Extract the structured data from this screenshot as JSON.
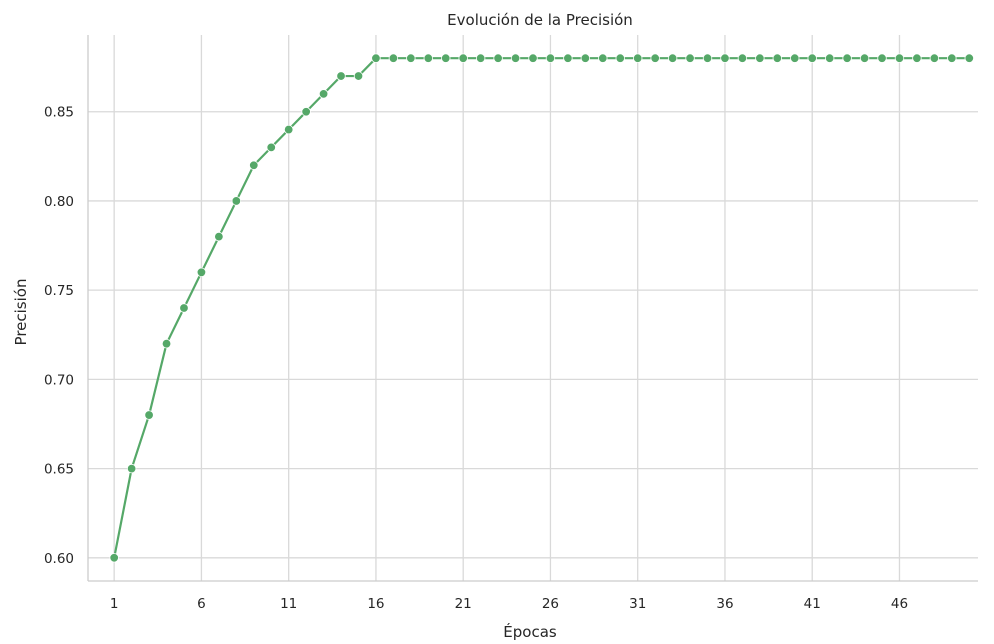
{
  "chart_data": {
    "type": "line",
    "title": "Evolución de la Precisión",
    "xlabel": "Épocas",
    "ylabel": "Precisión",
    "x_ticks": [
      1,
      6,
      11,
      16,
      21,
      26,
      31,
      36,
      41,
      46
    ],
    "y_ticks": [
      "0.60",
      "0.65",
      "0.70",
      "0.75",
      "0.80",
      "0.85"
    ],
    "xlim": [
      -0.5,
      50.5
    ],
    "ylim": [
      0.587,
      0.893
    ],
    "grid": true,
    "color": "#55a868",
    "series": [
      {
        "x": [
          1,
          2,
          3,
          4,
          5,
          6,
          7,
          8,
          9,
          10,
          11,
          12,
          13,
          14,
          15,
          16,
          17,
          18,
          19,
          20,
          21,
          22,
          23,
          24,
          25,
          26,
          27,
          28,
          29,
          30,
          31,
          32,
          33,
          34,
          35,
          36,
          37,
          38,
          39,
          40,
          41,
          42,
          43,
          44,
          45,
          46,
          47,
          48,
          49,
          50
        ],
        "values": [
          0.6,
          0.65,
          0.68,
          0.72,
          0.74,
          0.76,
          0.78,
          0.8,
          0.82,
          0.83,
          0.84,
          0.85,
          0.86,
          0.87,
          0.87,
          0.88,
          0.88,
          0.88,
          0.88,
          0.88,
          0.88,
          0.88,
          0.88,
          0.88,
          0.88,
          0.88,
          0.88,
          0.88,
          0.88,
          0.88,
          0.88,
          0.88,
          0.88,
          0.88,
          0.88,
          0.88,
          0.88,
          0.88,
          0.88,
          0.88,
          0.88,
          0.88,
          0.88,
          0.88,
          0.88,
          0.88,
          0.88,
          0.88,
          0.88,
          0.88
        ]
      }
    ]
  }
}
